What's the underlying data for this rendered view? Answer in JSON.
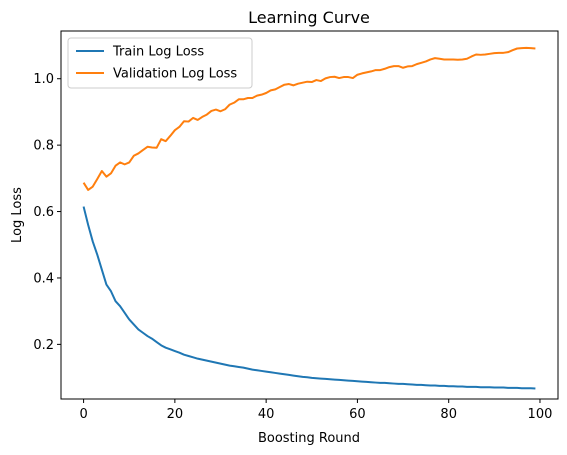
{
  "chart_data": {
    "type": "line",
    "title": "Learning Curve",
    "xlabel": "Boosting Round",
    "ylabel": "Log Loss",
    "xlim": [
      -4.95,
      103.95
    ],
    "ylim": [
      0.0355,
      1.1437
    ],
    "xticks": [
      0,
      20,
      40,
      60,
      80,
      100
    ],
    "yticks": [
      0.2,
      0.4,
      0.6,
      0.8,
      1.0
    ],
    "xtick_labels": [
      "0",
      "20",
      "40",
      "60",
      "80",
      "100"
    ],
    "ytick_labels": [
      "0.2",
      "0.4",
      "0.6",
      "0.8",
      "1.0"
    ],
    "grid": false,
    "legend_position": "top-left",
    "series": [
      {
        "name": "Train Log Loss",
        "color": "#1f77b4",
        "x": [
          0,
          1,
          2,
          3,
          4,
          5,
          6,
          7,
          8,
          9,
          10,
          11,
          12,
          13,
          14,
          15,
          16,
          17,
          18,
          19,
          20,
          21,
          22,
          23,
          24,
          25,
          26,
          27,
          28,
          29,
          30,
          31,
          32,
          33,
          34,
          35,
          36,
          37,
          38,
          39,
          40,
          41,
          42,
          43,
          44,
          45,
          46,
          47,
          48,
          49,
          50,
          51,
          52,
          53,
          54,
          55,
          56,
          57,
          58,
          59,
          60,
          61,
          62,
          63,
          64,
          65,
          66,
          67,
          68,
          69,
          70,
          71,
          72,
          73,
          74,
          75,
          76,
          77,
          78,
          79,
          80,
          81,
          82,
          83,
          84,
          85,
          86,
          87,
          88,
          89,
          90,
          91,
          92,
          93,
          94,
          95,
          96,
          97,
          98,
          99
        ],
        "y": [
          0.615,
          0.56,
          0.51,
          0.47,
          0.425,
          0.38,
          0.36,
          0.33,
          0.315,
          0.295,
          0.275,
          0.26,
          0.245,
          0.235,
          0.225,
          0.217,
          0.207,
          0.197,
          0.19,
          0.185,
          0.18,
          0.175,
          0.169,
          0.165,
          0.161,
          0.157,
          0.154,
          0.151,
          0.148,
          0.145,
          0.142,
          0.139,
          0.136,
          0.134,
          0.132,
          0.13,
          0.127,
          0.124,
          0.122,
          0.12,
          0.118,
          0.116,
          0.114,
          0.112,
          0.11,
          0.108,
          0.106,
          0.104,
          0.102,
          0.101,
          0.099,
          0.098,
          0.097,
          0.096,
          0.095,
          0.094,
          0.093,
          0.092,
          0.091,
          0.09,
          0.089,
          0.088,
          0.087,
          0.086,
          0.085,
          0.084,
          0.084,
          0.083,
          0.082,
          0.081,
          0.081,
          0.08,
          0.079,
          0.078,
          0.078,
          0.077,
          0.076,
          0.076,
          0.075,
          0.075,
          0.074,
          0.074,
          0.073,
          0.073,
          0.072,
          0.072,
          0.072,
          0.071,
          0.071,
          0.071,
          0.07,
          0.07,
          0.07,
          0.069,
          0.069,
          0.069,
          0.068,
          0.068,
          0.068,
          0.067
        ]
      },
      {
        "name": "Validation Log Loss",
        "color": "#ff7f0e",
        "x": [
          0,
          1,
          2,
          3,
          4,
          5,
          6,
          7,
          8,
          9,
          10,
          11,
          12,
          13,
          14,
          15,
          16,
          17,
          18,
          19,
          20,
          21,
          22,
          23,
          24,
          25,
          26,
          27,
          28,
          29,
          30,
          31,
          32,
          33,
          34,
          35,
          36,
          37,
          38,
          39,
          40,
          41,
          42,
          43,
          44,
          45,
          46,
          47,
          48,
          49,
          50,
          51,
          52,
          53,
          54,
          55,
          56,
          57,
          58,
          59,
          60,
          61,
          62,
          63,
          64,
          65,
          66,
          67,
          68,
          69,
          70,
          71,
          72,
          73,
          74,
          75,
          76,
          77,
          78,
          79,
          80,
          81,
          82,
          83,
          84,
          85,
          86,
          87,
          88,
          89,
          90,
          91,
          92,
          93,
          94,
          95,
          96,
          97,
          98,
          99
        ],
        "y": [
          0.687,
          0.665,
          0.675,
          0.698,
          0.722,
          0.705,
          0.715,
          0.738,
          0.748,
          0.742,
          0.748,
          0.768,
          0.775,
          0.785,
          0.795,
          0.793,
          0.792,
          0.818,
          0.812,
          0.828,
          0.845,
          0.855,
          0.872,
          0.871,
          0.882,
          0.876,
          0.885,
          0.892,
          0.903,
          0.907,
          0.902,
          0.908,
          0.922,
          0.928,
          0.938,
          0.938,
          0.942,
          0.942,
          0.949,
          0.952,
          0.957,
          0.965,
          0.968,
          0.975,
          0.982,
          0.984,
          0.98,
          0.985,
          0.988,
          0.991,
          0.99,
          0.996,
          0.993,
          1.001,
          1.005,
          1.006,
          1.002,
          1.005,
          1.005,
          1.002,
          1.012,
          1.016,
          1.019,
          1.022,
          1.026,
          1.026,
          1.03,
          1.035,
          1.038,
          1.038,
          1.033,
          1.037,
          1.038,
          1.044,
          1.048,
          1.052,
          1.058,
          1.062,
          1.06,
          1.058,
          1.058,
          1.058,
          1.057,
          1.058,
          1.06,
          1.067,
          1.073,
          1.072,
          1.073,
          1.075,
          1.077,
          1.078,
          1.078,
          1.08,
          1.086,
          1.091,
          1.092,
          1.093,
          1.092,
          1.091
        ]
      }
    ]
  }
}
